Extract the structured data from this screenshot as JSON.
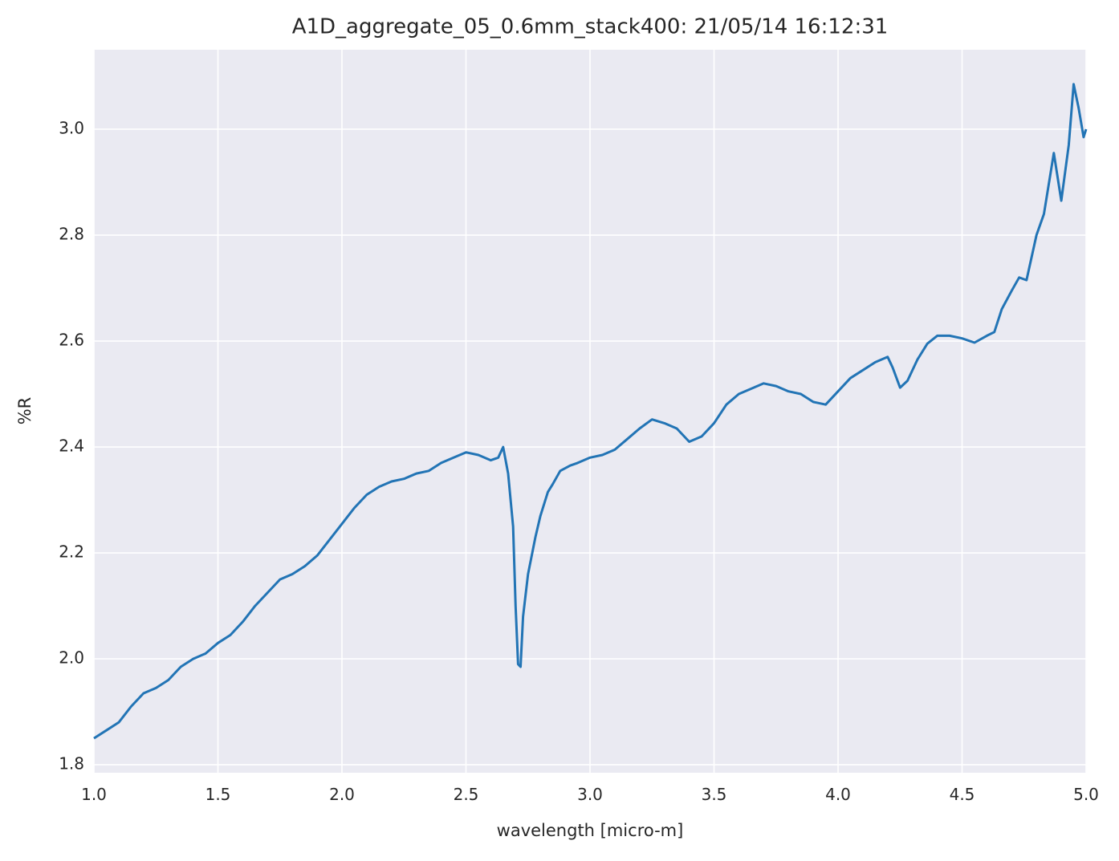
{
  "chart_data": {
    "type": "line",
    "title": "A1D_aggregate_05_0.6mm_stack400:  21/05/14 16:12:31",
    "xlabel": "wavelength [micro-m]",
    "ylabel": "%R",
    "xlim": [
      1,
      5
    ],
    "ylim": [
      1.785,
      3.15
    ],
    "xticks": [
      {
        "value": 1,
        "label": "1.0"
      },
      1.5,
      {
        "value": 2,
        "label": "2.0"
      },
      2.5,
      {
        "value": 3,
        "label": "3.0"
      },
      3.5,
      {
        "value": 4,
        "label": "4.0"
      },
      4.5,
      {
        "value": 5,
        "label": "5.0"
      }
    ],
    "yticks": [
      1.8,
      {
        "value": 2,
        "label": "2.0"
      },
      2.2,
      2.4,
      2.6,
      2.8,
      {
        "value": 3,
        "label": "3.0"
      }
    ],
    "grid": true,
    "x": [
      1.0,
      1.05,
      1.1,
      1.15,
      1.2,
      1.25,
      1.3,
      1.35,
      1.4,
      1.45,
      1.5,
      1.55,
      1.6,
      1.65,
      1.7,
      1.75,
      1.8,
      1.85,
      1.9,
      1.95,
      2.0,
      2.05,
      2.1,
      2.15,
      2.2,
      2.25,
      2.3,
      2.35,
      2.4,
      2.45,
      2.5,
      2.55,
      2.6,
      2.63,
      2.65,
      2.67,
      2.69,
      2.7,
      2.71,
      2.72,
      2.73,
      2.75,
      2.78,
      2.8,
      2.83,
      2.85,
      2.88,
      2.92,
      2.95,
      3.0,
      3.05,
      3.1,
      3.15,
      3.2,
      3.25,
      3.3,
      3.35,
      3.4,
      3.45,
      3.5,
      3.55,
      3.6,
      3.65,
      3.7,
      3.75,
      3.8,
      3.85,
      3.9,
      3.95,
      4.0,
      4.05,
      4.1,
      4.15,
      4.2,
      4.22,
      4.25,
      4.28,
      4.32,
      4.36,
      4.4,
      4.45,
      4.5,
      4.55,
      4.6,
      4.63,
      4.66,
      4.7,
      4.73,
      4.76,
      4.8,
      4.83,
      4.87,
      4.9,
      4.93,
      4.95,
      4.97,
      4.99,
      5.0
    ],
    "series": [
      {
        "name": "%R",
        "color": "#2274b5",
        "values": [
          1.85,
          1.865,
          1.88,
          1.91,
          1.935,
          1.945,
          1.96,
          1.985,
          2.0,
          2.01,
          2.03,
          2.045,
          2.07,
          2.1,
          2.125,
          2.15,
          2.16,
          2.175,
          2.195,
          2.225,
          2.255,
          2.285,
          2.31,
          2.325,
          2.335,
          2.34,
          2.35,
          2.355,
          2.37,
          2.38,
          2.39,
          2.385,
          2.375,
          2.38,
          2.4,
          2.35,
          2.25,
          2.1,
          1.99,
          1.985,
          2.08,
          2.16,
          2.23,
          2.27,
          2.315,
          2.33,
          2.355,
          2.365,
          2.37,
          2.38,
          2.385,
          2.395,
          2.415,
          2.435,
          2.452,
          2.445,
          2.435,
          2.41,
          2.42,
          2.445,
          2.48,
          2.5,
          2.51,
          2.52,
          2.515,
          2.505,
          2.5,
          2.485,
          2.48,
          2.505,
          2.53,
          2.545,
          2.56,
          2.57,
          2.55,
          2.512,
          2.525,
          2.565,
          2.595,
          2.61,
          2.61,
          2.605,
          2.597,
          2.61,
          2.617,
          2.66,
          2.695,
          2.72,
          2.715,
          2.8,
          2.84,
          2.955,
          2.865,
          2.97,
          3.085,
          3.04,
          2.985,
          3.0
        ]
      }
    ]
  }
}
